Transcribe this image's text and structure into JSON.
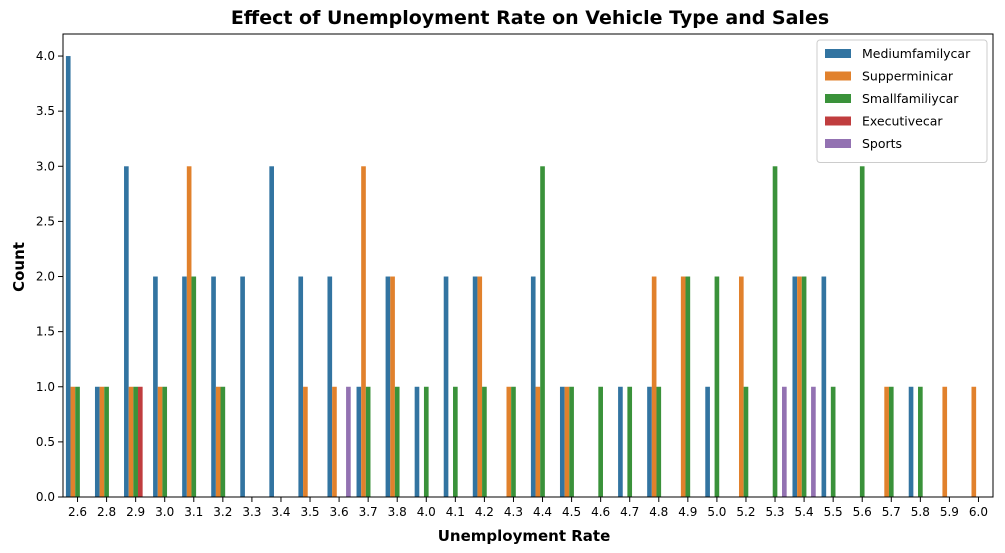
{
  "chart_data": {
    "type": "bar",
    "title": "Effect of Unemployment Rate on Vehicle Type and Sales",
    "xlabel": "Unemployment Rate",
    "ylabel": "Count",
    "ylim": [
      0,
      4.2
    ],
    "yticks": [
      "0.0",
      "0.5",
      "1.0",
      "1.5",
      "2.0",
      "2.5",
      "3.0",
      "3.5",
      "4.0"
    ],
    "grid": false,
    "legend_position": "top-right",
    "categories": [
      "2.6",
      "2.8",
      "2.9",
      "3.0",
      "3.1",
      "3.2",
      "3.3",
      "3.4",
      "3.5",
      "3.6",
      "3.7",
      "3.8",
      "4.0",
      "4.1",
      "4.2",
      "4.3",
      "4.4",
      "4.5",
      "4.6",
      "4.7",
      "4.8",
      "4.9",
      "5.0",
      "5.2",
      "5.3",
      "5.4",
      "5.5",
      "5.6",
      "5.7",
      "5.8",
      "5.9",
      "6.0"
    ],
    "series": [
      {
        "name": "Mediumfamilycar",
        "color": "#3274a1",
        "values": [
          4,
          1,
          3,
          2,
          2,
          2,
          2,
          3,
          2,
          2,
          1,
          2,
          1,
          2,
          2,
          0,
          2,
          1,
          0,
          1,
          1,
          0,
          1,
          0,
          0,
          2,
          2,
          0,
          0,
          1,
          0,
          0
        ]
      },
      {
        "name": "Supperminicar",
        "color": "#e1812c",
        "values": [
          1,
          1,
          1,
          1,
          3,
          1,
          0,
          0,
          1,
          1,
          3,
          2,
          0,
          0,
          2,
          1,
          1,
          1,
          0,
          0,
          2,
          2,
          0,
          2,
          0,
          2,
          0,
          0,
          1,
          0,
          1,
          1
        ]
      },
      {
        "name": "Smallfamiliycar",
        "color": "#3a923a",
        "values": [
          1,
          1,
          1,
          1,
          2,
          1,
          0,
          0,
          0,
          0,
          1,
          1,
          1,
          1,
          1,
          1,
          3,
          1,
          1,
          1,
          1,
          2,
          2,
          1,
          3,
          2,
          1,
          3,
          1,
          1,
          0,
          0
        ]
      },
      {
        "name": "Executivecar",
        "color": "#c03d3e",
        "values": [
          0,
          0,
          1,
          0,
          0,
          0,
          0,
          0,
          0,
          0,
          0,
          0,
          0,
          0,
          0,
          0,
          0,
          0,
          0,
          0,
          0,
          0,
          0,
          0,
          0,
          0,
          0,
          0,
          0,
          0,
          0,
          0
        ]
      },
      {
        "name": "Sports",
        "color": "#9372b2",
        "values": [
          0,
          0,
          0,
          0,
          0,
          0,
          0,
          0,
          0,
          1,
          0,
          0,
          0,
          0,
          0,
          0,
          0,
          0,
          0,
          0,
          0,
          0,
          0,
          0,
          1,
          1,
          0,
          0,
          0,
          0,
          0,
          0
        ]
      }
    ]
  }
}
